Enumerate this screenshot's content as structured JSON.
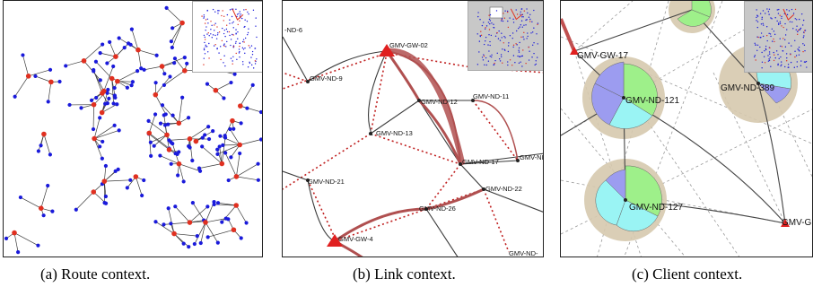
{
  "panels": [
    {
      "caption": "(a) Route context."
    },
    {
      "caption": "(b) Link context.",
      "labels": {
        "nd6": "-ND-6",
        "gw02": "GMV-GW-02",
        "nd9": "GMV-ND-9",
        "nd11": "GMV-ND-11",
        "nd12": "GMV-ND-12",
        "nd13": "GMV-ND-13",
        "nd17": "GMV-ND-17",
        "ndcut": "GMV-NI",
        "nd21": "GMV-ND-21",
        "nd22": "GMV-ND-22",
        "nd26": "GMV-ND-26",
        "gw4": "GMV-GW-4",
        "ndbottom": "GMV-ND-"
      }
    },
    {
      "caption": "(c) Client context.",
      "labels": {
        "gw17": "GMV-GW-17",
        "nd121": "GMV-ND-121",
        "nd389": "GMV-ND-389",
        "nd127": "GMV-ND-127",
        "gwcut": "GMV-G"
      }
    }
  ],
  "colors": {
    "node_blue": "#1a1adb",
    "node_red": "#e03020",
    "link_dark": "#3a3a3a",
    "link_thick": "#b05050",
    "link_dotted": "#c02020",
    "halo": "#d6c9ae",
    "pie_green": "#9ef08a",
    "pie_cyan": "#9af4f4",
    "pie_blue": "#9c9cf0"
  }
}
